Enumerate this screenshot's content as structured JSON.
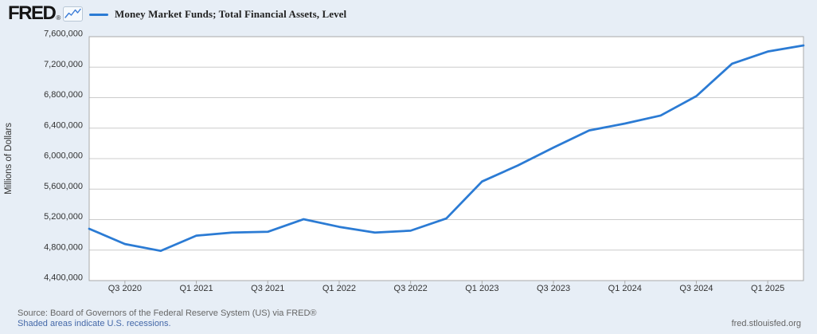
{
  "header": {
    "logo_text": "FRED",
    "logo_reg": "®"
  },
  "chart_data": {
    "type": "line",
    "title": "Money Market Funds; Total Financial Assets, Level",
    "ylabel": "Millions of Dollars",
    "xlabel": "",
    "ylim": [
      4400000,
      7600000
    ],
    "ytick_step": 400000,
    "ytick_labels_top_to_bottom": [
      "7,600,000",
      "7,200,000",
      "6,800,000",
      "6,400,000",
      "6,000,000",
      "5,600,000",
      "5,200,000",
      "4,800,000",
      "4,400,000"
    ],
    "x": [
      "Q2 2020",
      "Q3 2020",
      "Q4 2020",
      "Q1 2021",
      "Q2 2021",
      "Q3 2021",
      "Q4 2021",
      "Q1 2022",
      "Q2 2022",
      "Q3 2022",
      "Q4 2022",
      "Q1 2023",
      "Q2 2023",
      "Q3 2023",
      "Q4 2023",
      "Q1 2024",
      "Q2 2024",
      "Q3 2024",
      "Q4 2024",
      "Q1 2025",
      "Q2 2025"
    ],
    "values": [
      5080000,
      4880000,
      4790000,
      4990000,
      5030000,
      5040000,
      5205000,
      5105000,
      5030000,
      5055000,
      5215000,
      5700000,
      5910000,
      6145000,
      6370000,
      6460000,
      6565000,
      6820000,
      7245000,
      7405000,
      7485000
    ],
    "xtick_labels": [
      "Q3 2020",
      "Q1 2021",
      "Q3 2021",
      "Q1 2022",
      "Q3 2022",
      "Q1 2023",
      "Q3 2023",
      "Q1 2024",
      "Q3 2024",
      "Q1 2025"
    ],
    "xtick_indices": [
      1,
      3,
      5,
      7,
      9,
      11,
      13,
      15,
      17,
      19
    ],
    "grid": true,
    "legend_position": "top"
  },
  "colors": {
    "page_background": "#e7eef6",
    "plot_background": "#ffffff",
    "line": "#2b7bd4",
    "gridline": "#cccccc",
    "axis_border": "#a9a9a9",
    "tick_text": "#333333",
    "footer_text": "#666666",
    "link_text": "#4468a8",
    "logo_text": "#151515"
  },
  "footer": {
    "source": "Source: Board of Governors of the Federal Reserve System (US) via FRED®",
    "recession_note": "Shaded areas indicate U.S. recessions.",
    "site": "fred.stlouisfed.org"
  }
}
